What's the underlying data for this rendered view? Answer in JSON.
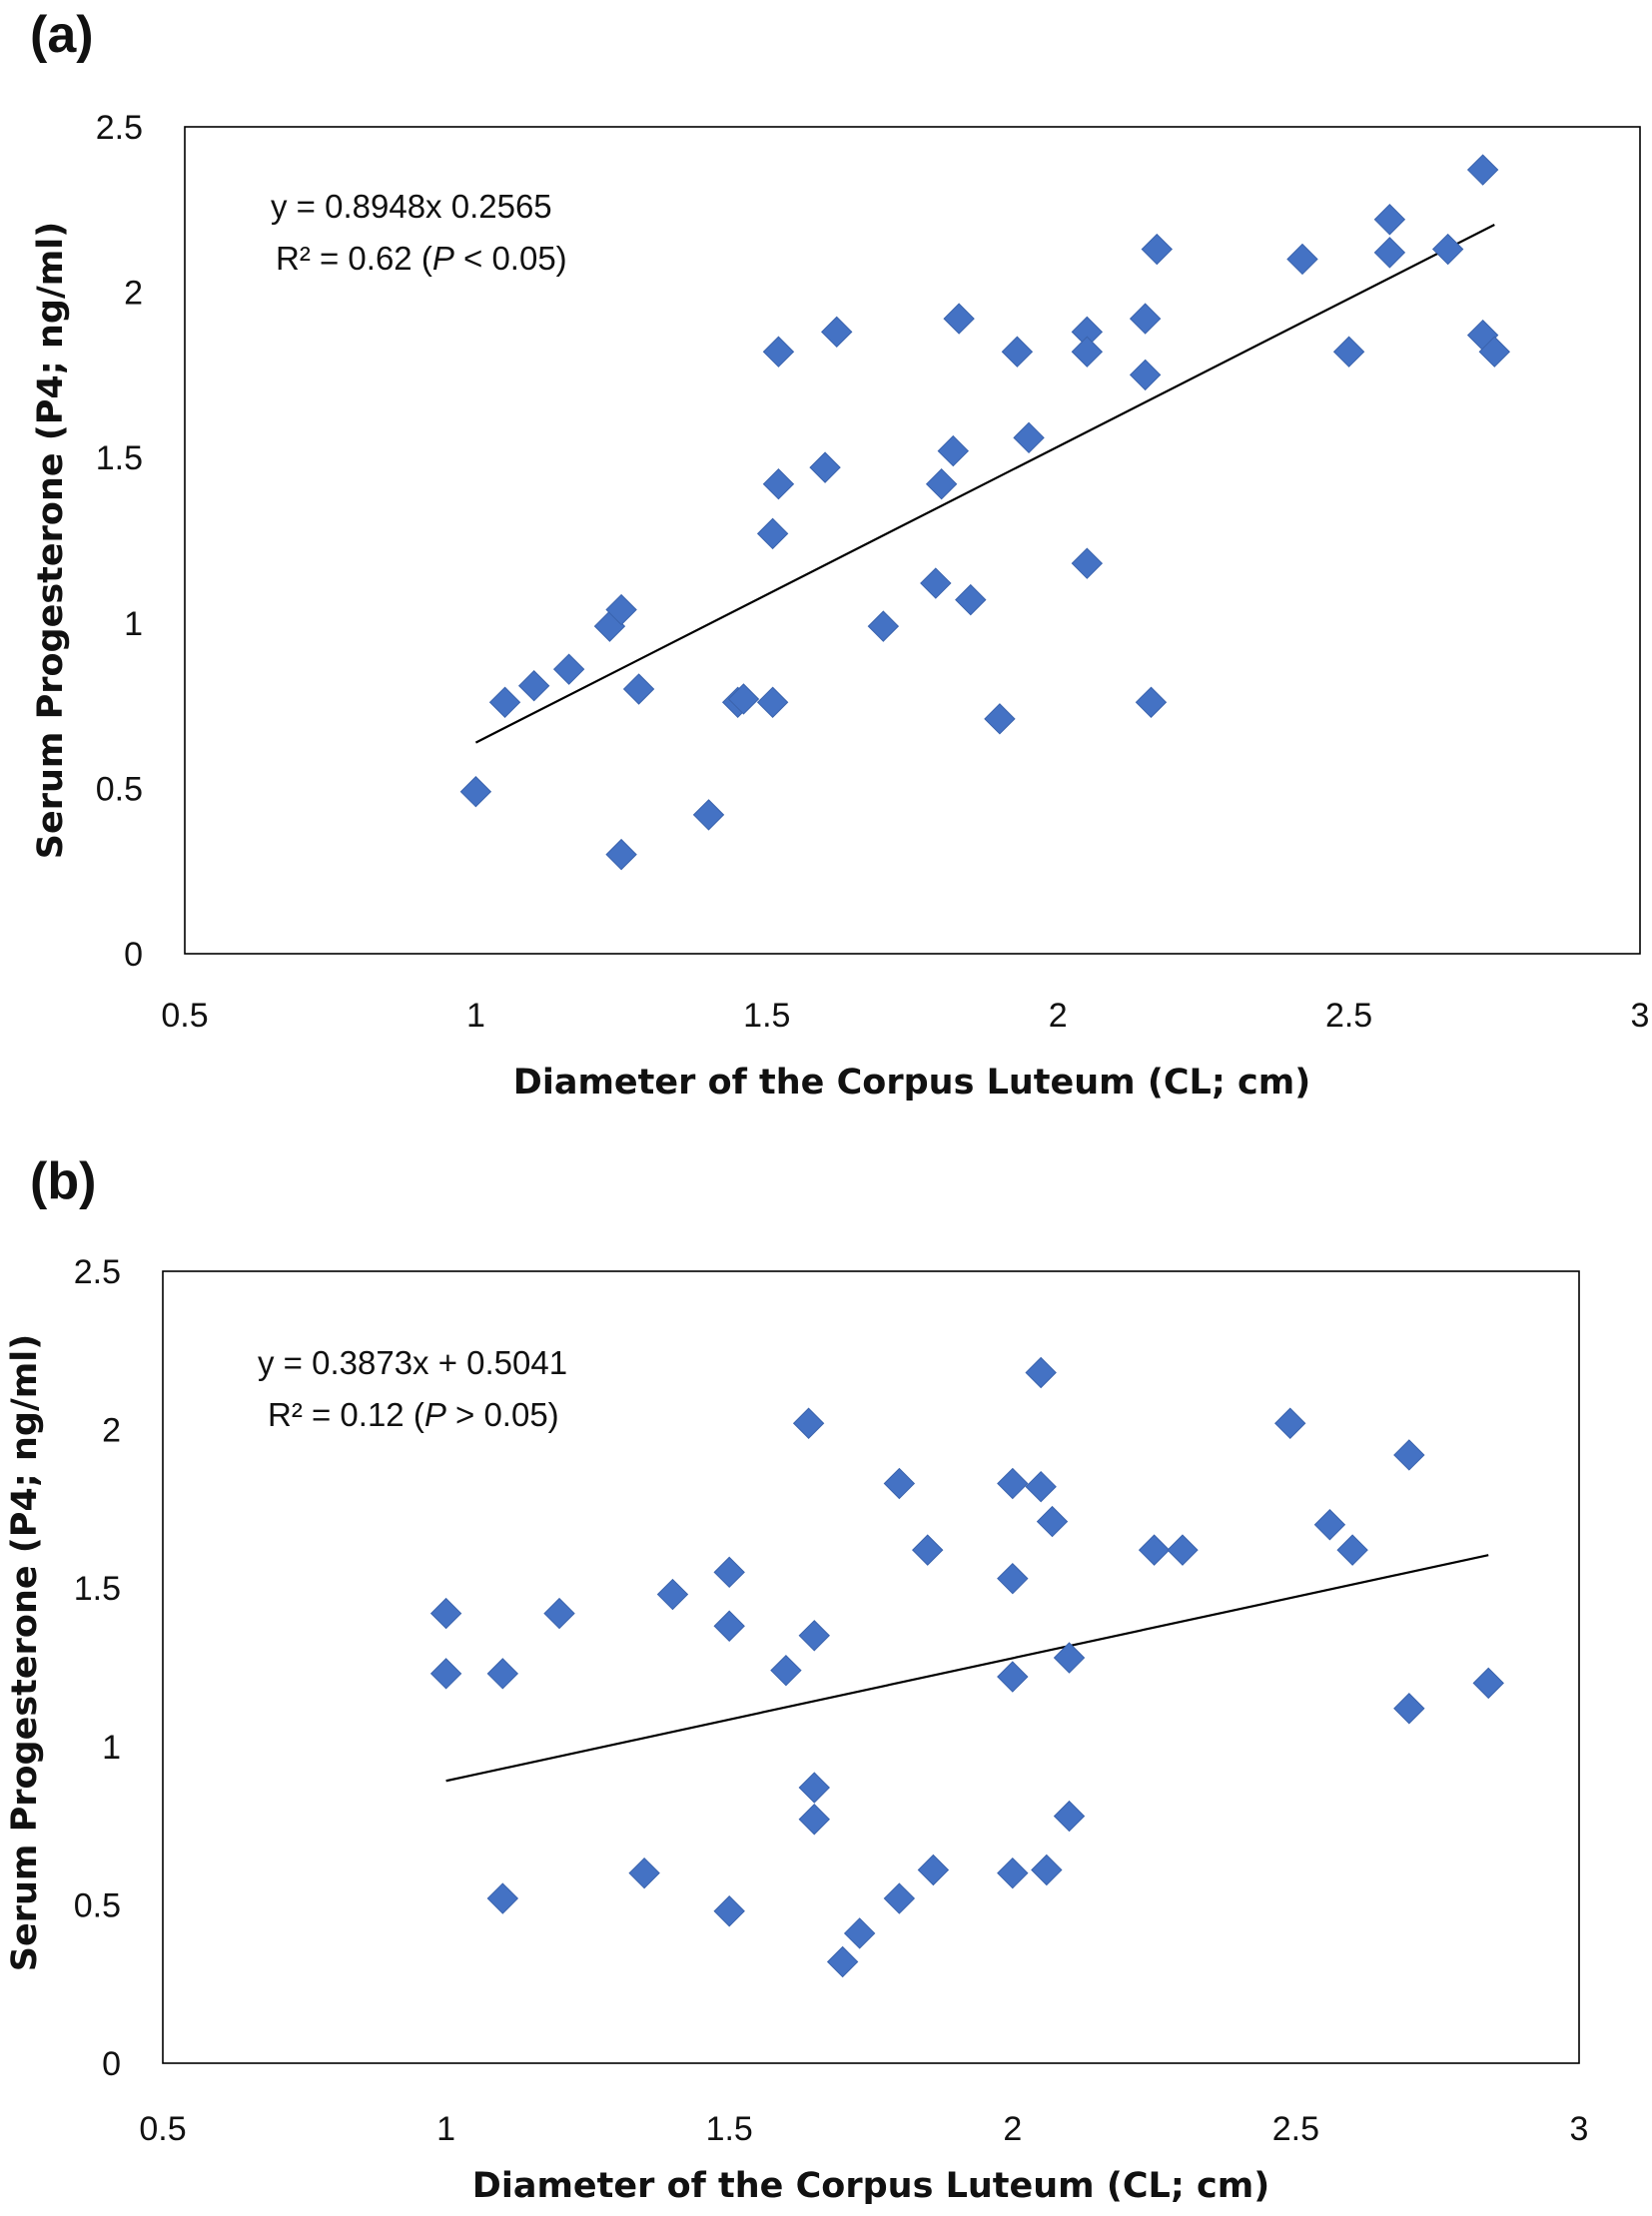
{
  "chart_data": [
    {
      "panel_label": "(a)",
      "type": "scatter",
      "xlabel": "Diameter of the Corpus Luteum (CL; cm)",
      "ylabel": "Serum Progesterone (P4; ng/ml)",
      "xlim": [
        0.5,
        3
      ],
      "ylim": [
        0,
        2.5
      ],
      "xticks": [
        "0.5",
        "1",
        "1.5",
        "2",
        "2.5",
        "3"
      ],
      "yticks": [
        "0",
        "0.5",
        "1",
        "1.5",
        "2",
        "2.5"
      ],
      "equation": "y = 0.8948x   0.2565",
      "r2_prefix": "R² = 0.62  (",
      "p_letter": "P",
      "p_suffix": " < 0.05)",
      "marker_color": "#4472C4",
      "grid": false,
      "trendline": {
        "slope": 0.8948,
        "intercept": -0.2565,
        "x_range": [
          1.0,
          2.75
        ]
      },
      "points": [
        [
          1.0,
          0.49
        ],
        [
          1.05,
          0.76
        ],
        [
          1.1,
          0.81
        ],
        [
          1.16,
          0.86
        ],
        [
          1.23,
          0.99
        ],
        [
          1.25,
          1.04
        ],
        [
          1.25,
          0.3
        ],
        [
          1.28,
          0.8
        ],
        [
          1.4,
          0.42
        ],
        [
          1.45,
          0.76
        ],
        [
          1.46,
          0.77
        ],
        [
          1.51,
          1.27
        ],
        [
          1.51,
          0.76
        ],
        [
          1.52,
          1.42
        ],
        [
          1.52,
          1.82
        ],
        [
          1.6,
          1.47
        ],
        [
          1.62,
          1.88
        ],
        [
          1.7,
          0.99
        ],
        [
          1.79,
          1.12
        ],
        [
          1.8,
          1.42
        ],
        [
          1.82,
          1.52
        ],
        [
          1.83,
          1.92
        ],
        [
          1.85,
          1.07
        ],
        [
          1.9,
          0.71
        ],
        [
          1.93,
          1.82
        ],
        [
          1.95,
          1.56
        ],
        [
          2.05,
          1.88
        ],
        [
          2.05,
          1.82
        ],
        [
          2.05,
          1.18
        ],
        [
          2.15,
          1.75
        ],
        [
          2.15,
          1.92
        ],
        [
          2.16,
          0.76
        ],
        [
          2.17,
          2.13
        ],
        [
          2.42,
          2.1
        ],
        [
          2.5,
          1.82
        ],
        [
          2.57,
          2.22
        ],
        [
          2.57,
          2.12
        ],
        [
          2.67,
          2.13
        ],
        [
          2.73,
          2.37
        ],
        [
          2.73,
          1.87
        ],
        [
          2.75,
          1.82
        ]
      ]
    },
    {
      "panel_label": "(b)",
      "type": "scatter",
      "xlabel": "Diameter of the Corpus Luteum (CL; cm)",
      "ylabel": "Serum Progesterone (P4; ng/ml)",
      "xlim": [
        0.5,
        3
      ],
      "ylim": [
        0,
        2.5
      ],
      "xticks": [
        "0.5",
        "1",
        "1.5",
        "2",
        "2.5",
        "3"
      ],
      "yticks": [
        "0",
        "0.5",
        "1",
        "1.5",
        "2",
        "2.5"
      ],
      "equation": "y = 0.3873x + 0.5041",
      "r2_prefix": "R² = 0.12  (",
      "p_letter": "P",
      "p_suffix": " > 0.05)",
      "marker_color": "#4472C4",
      "grid": false,
      "trendline": {
        "slope": 0.3873,
        "intercept": 0.5041,
        "x_range": [
          1.0,
          2.84
        ]
      },
      "points": [
        [
          1.0,
          1.42
        ],
        [
          1.0,
          1.23
        ],
        [
          1.1,
          1.23
        ],
        [
          1.1,
          0.52
        ],
        [
          1.2,
          1.42
        ],
        [
          1.35,
          0.6
        ],
        [
          1.4,
          1.48
        ],
        [
          1.5,
          1.55
        ],
        [
          1.5,
          1.38
        ],
        [
          1.5,
          0.48
        ],
        [
          1.6,
          1.24
        ],
        [
          1.64,
          2.02
        ],
        [
          1.65,
          1.35
        ],
        [
          1.65,
          0.87
        ],
        [
          1.65,
          0.77
        ],
        [
          1.7,
          0.32
        ],
        [
          1.73,
          0.41
        ],
        [
          1.8,
          1.83
        ],
        [
          1.8,
          0.52
        ],
        [
          1.85,
          1.62
        ],
        [
          1.86,
          0.61
        ],
        [
          2.0,
          1.83
        ],
        [
          2.0,
          1.53
        ],
        [
          2.0,
          1.22
        ],
        [
          2.0,
          0.6
        ],
        [
          2.05,
          2.18
        ],
        [
          2.05,
          1.82
        ],
        [
          2.06,
          0.61
        ],
        [
          2.07,
          1.71
        ],
        [
          2.1,
          1.28
        ],
        [
          2.1,
          0.78
        ],
        [
          2.25,
          1.62
        ],
        [
          2.3,
          1.62
        ],
        [
          2.49,
          2.02
        ],
        [
          2.56,
          1.7
        ],
        [
          2.6,
          1.62
        ],
        [
          2.7,
          1.92
        ],
        [
          2.7,
          1.12
        ],
        [
          2.84,
          1.2
        ]
      ]
    }
  ]
}
